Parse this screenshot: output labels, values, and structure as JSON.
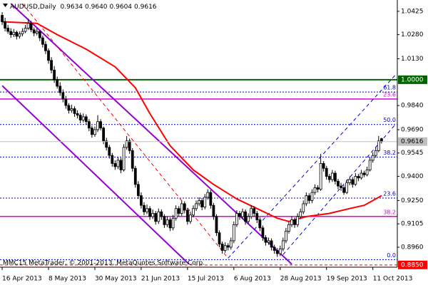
{
  "chart_data": {
    "type": "candlestick",
    "symbol": "AUDUSD,Daily",
    "value_labels": [
      "0.9634",
      "0.9640",
      "0.9604",
      "0.9616"
    ],
    "copyright": "MMC15 MetaTrader, © 2001-2013, MetaQuotes Software Corp.",
    "xlim": [
      -0.75,
      136.45
    ],
    "xticks": [
      {
        "value": 0,
        "label": "16 Apr 2013"
      },
      {
        "value": 16,
        "label": "8 May 2013"
      },
      {
        "value": 32,
        "label": "30 May 2013"
      },
      {
        "value": 48,
        "label": "21 Jun 2013"
      },
      {
        "value": 64,
        "label": "15 Jul 2013"
      },
      {
        "value": 80,
        "label": "6 Aug 2013"
      },
      {
        "value": 96,
        "label": "28 Aug 2013"
      },
      {
        "value": 112,
        "label": "19 Sep 2013"
      },
      {
        "value": 128,
        "label": "11 Oct 2013"
      }
    ],
    "ylim": [
      0.8836,
      1.0473
    ],
    "yticks": [
      {
        "value": 1.0425,
        "label": "1.0425"
      },
      {
        "value": 1.028,
        "label": "1.0280"
      },
      {
        "value": 1.013,
        "label": "1.0130"
      },
      {
        "value": 0.984,
        "label": "0.9840"
      },
      {
        "value": 0.969,
        "label": "0.9690"
      },
      {
        "value": 0.9545,
        "label": "0.9545"
      },
      {
        "value": 0.94,
        "label": "0.9400"
      },
      {
        "value": 0.925,
        "label": "0.9250"
      },
      {
        "value": 0.9105,
        "label": "0.9105"
      },
      {
        "value": 0.896,
        "label": "0.8960"
      }
    ],
    "up_color": "#ffffff",
    "down_color": "#000000",
    "candle_outline": "#000000",
    "current_price_color": "#c0c0c0",
    "ohlc": [
      [
        1.04,
        1.042,
        1.034,
        1.036
      ],
      [
        1.036,
        1.0385,
        1.03,
        1.032
      ],
      [
        1.032,
        1.034,
        1.0285,
        1.03
      ],
      [
        1.03,
        1.032,
        1.026,
        1.028
      ],
      [
        1.028,
        1.0315,
        1.0265,
        1.0295
      ],
      [
        1.0295,
        1.0305,
        1.025,
        1.027
      ],
      [
        1.027,
        1.03,
        1.0255,
        1.0285
      ],
      [
        1.0285,
        1.032,
        1.027,
        1.03
      ],
      [
        1.03,
        1.034,
        1.029,
        1.032
      ],
      [
        1.032,
        1.038,
        1.031,
        1.035
      ],
      [
        1.035,
        1.0365,
        1.0295,
        1.031
      ],
      [
        1.031,
        1.0325,
        1.027,
        1.029
      ],
      [
        1.029,
        1.032,
        1.0275,
        1.03
      ],
      [
        1.03,
        1.031,
        1.024,
        1.026
      ],
      [
        1.026,
        1.0275,
        1.02,
        1.022
      ],
      [
        1.022,
        1.024,
        1.016,
        1.018
      ],
      [
        1.018,
        1.0195,
        1.01,
        1.012
      ],
      [
        1.012,
        1.014,
        1.004,
        1.006
      ],
      [
        1.006,
        1.0085,
        0.998,
        1.0
      ],
      [
        1.0,
        1.002,
        0.9945,
        0.996
      ],
      [
        0.996,
        0.9985,
        0.99,
        0.992
      ],
      [
        0.992,
        0.994,
        0.986,
        0.988
      ],
      [
        0.988,
        0.99,
        0.982,
        0.984
      ],
      [
        0.984,
        0.9855,
        0.979,
        0.981
      ],
      [
        0.981,
        0.9845,
        0.9795,
        0.982
      ],
      [
        0.982,
        0.9835,
        0.977,
        0.979
      ],
      [
        0.979,
        0.981,
        0.976,
        0.978
      ],
      [
        0.978,
        0.9795,
        0.973,
        0.975
      ],
      [
        0.975,
        0.979,
        0.9735,
        0.977
      ],
      [
        0.977,
        0.9785,
        0.972,
        0.974
      ],
      [
        0.974,
        0.9755,
        0.968,
        0.97
      ],
      [
        0.97,
        0.9715,
        0.964,
        0.966
      ],
      [
        0.966,
        0.971,
        0.9645,
        0.969
      ],
      [
        0.969,
        0.978,
        0.9675,
        0.974
      ],
      [
        0.974,
        0.9755,
        0.9685,
        0.97
      ],
      [
        0.97,
        0.971,
        0.96,
        0.962
      ],
      [
        0.962,
        0.964,
        0.956,
        0.958
      ],
      [
        0.958,
        0.9595,
        0.951,
        0.953
      ],
      [
        0.953,
        0.9545,
        0.946,
        0.948
      ],
      [
        0.948,
        0.95,
        0.944,
        0.946
      ],
      [
        0.946,
        0.952,
        0.9445,
        0.95
      ],
      [
        0.95,
        0.9515,
        0.942,
        0.944
      ],
      [
        0.944,
        0.96,
        0.943,
        0.958
      ],
      [
        0.958,
        0.965,
        0.9565,
        0.962
      ],
      [
        0.962,
        0.9635,
        0.954,
        0.956
      ],
      [
        0.956,
        0.9575,
        0.943,
        0.945
      ],
      [
        0.945,
        0.9465,
        0.933,
        0.935
      ],
      [
        0.935,
        0.937,
        0.926,
        0.928
      ],
      [
        0.928,
        0.93,
        0.92,
        0.922
      ],
      [
        0.922,
        0.924,
        0.916,
        0.918
      ],
      [
        0.918,
        0.9225,
        0.9165,
        0.92
      ],
      [
        0.92,
        0.9215,
        0.913,
        0.915
      ],
      [
        0.915,
        0.9195,
        0.9135,
        0.917
      ],
      [
        0.917,
        0.9185,
        0.91,
        0.912
      ],
      [
        0.912,
        0.92,
        0.9105,
        0.918
      ],
      [
        0.918,
        0.9195,
        0.913,
        0.915
      ],
      [
        0.915,
        0.9165,
        0.908,
        0.91
      ],
      [
        0.91,
        0.915,
        0.9085,
        0.913
      ],
      [
        0.913,
        0.9145,
        0.906,
        0.908
      ],
      [
        0.908,
        0.916,
        0.9065,
        0.914
      ],
      [
        0.914,
        0.922,
        0.9125,
        0.92
      ],
      [
        0.92,
        0.9215,
        0.915,
        0.917
      ],
      [
        0.917,
        0.925,
        0.9155,
        0.923
      ],
      [
        0.923,
        0.9245,
        0.917,
        0.919
      ],
      [
        0.919,
        0.9205,
        0.91,
        0.912
      ],
      [
        0.912,
        0.918,
        0.9105,
        0.916
      ],
      [
        0.916,
        0.922,
        0.9145,
        0.92
      ],
      [
        0.92,
        0.925,
        0.9185,
        0.923
      ],
      [
        0.923,
        0.927,
        0.9215,
        0.925
      ],
      [
        0.925,
        0.9265,
        0.919,
        0.921
      ],
      [
        0.921,
        0.929,
        0.9195,
        0.927
      ],
      [
        0.927,
        0.932,
        0.9255,
        0.93
      ],
      [
        0.93,
        0.9315,
        0.92,
        0.922
      ],
      [
        0.922,
        0.9235,
        0.913,
        0.915
      ],
      [
        0.915,
        0.9165,
        0.903,
        0.905
      ],
      [
        0.905,
        0.9065,
        0.896,
        0.898
      ],
      [
        0.898,
        0.8995,
        0.892,
        0.894
      ],
      [
        0.894,
        0.899,
        0.8925,
        0.897
      ],
      [
        0.897,
        0.8985,
        0.894,
        0.896
      ],
      [
        0.896,
        0.902,
        0.8945,
        0.9
      ],
      [
        0.9,
        0.912,
        0.8985,
        0.91
      ],
      [
        0.91,
        0.919,
        0.9085,
        0.917
      ],
      [
        0.917,
        0.9185,
        0.913,
        0.915
      ],
      [
        0.915,
        0.92,
        0.9135,
        0.918
      ],
      [
        0.918,
        0.9195,
        0.91,
        0.912
      ],
      [
        0.912,
        0.917,
        0.9105,
        0.915
      ],
      [
        0.915,
        0.922,
        0.9135,
        0.92
      ],
      [
        0.92,
        0.9215,
        0.915,
        0.917
      ],
      [
        0.917,
        0.9185,
        0.911,
        0.913
      ],
      [
        0.913,
        0.9145,
        0.906,
        0.908
      ],
      [
        0.908,
        0.9095,
        0.9,
        0.902
      ],
      [
        0.902,
        0.9035,
        0.897,
        0.899
      ],
      [
        0.899,
        0.902,
        0.8975,
        0.9
      ],
      [
        0.9,
        0.9015,
        0.894,
        0.896
      ],
      [
        0.896,
        0.8975,
        0.892,
        0.894
      ],
      [
        0.894,
        0.8955,
        0.89,
        0.892
      ],
      [
        0.892,
        0.897,
        0.8905,
        0.895
      ],
      [
        0.895,
        0.902,
        0.8935,
        0.9
      ],
      [
        0.9,
        0.908,
        0.8985,
        0.906
      ],
      [
        0.906,
        0.912,
        0.9045,
        0.91
      ],
      [
        0.91,
        0.915,
        0.9085,
        0.913
      ],
      [
        0.913,
        0.9145,
        0.908,
        0.91
      ],
      [
        0.91,
        0.917,
        0.9085,
        0.915
      ],
      [
        0.915,
        0.92,
        0.9135,
        0.918
      ],
      [
        0.918,
        0.925,
        0.9165,
        0.923
      ],
      [
        0.923,
        0.93,
        0.9215,
        0.928
      ],
      [
        0.928,
        0.9295,
        0.923,
        0.925
      ],
      [
        0.925,
        0.932,
        0.9235,
        0.93
      ],
      [
        0.93,
        0.935,
        0.9285,
        0.933
      ],
      [
        0.933,
        0.9345,
        0.93,
        0.932
      ],
      [
        0.932,
        0.954,
        0.931,
        0.948
      ],
      [
        0.948,
        0.9495,
        0.943,
        0.945
      ],
      [
        0.945,
        0.9465,
        0.938,
        0.94
      ],
      [
        0.94,
        0.9415,
        0.936,
        0.938
      ],
      [
        0.938,
        0.944,
        0.9365,
        0.942
      ],
      [
        0.942,
        0.9435,
        0.935,
        0.937
      ],
      [
        0.937,
        0.9385,
        0.932,
        0.934
      ],
      [
        0.934,
        0.936,
        0.931,
        0.933
      ],
      [
        0.933,
        0.9345,
        0.9285,
        0.93
      ],
      [
        0.93,
        0.938,
        0.929,
        0.936
      ],
      [
        0.936,
        0.94,
        0.9345,
        0.938
      ],
      [
        0.938,
        0.9395,
        0.933,
        0.935
      ],
      [
        0.935,
        0.942,
        0.934,
        0.94
      ],
      [
        0.94,
        0.9415,
        0.937,
        0.939
      ],
      [
        0.939,
        0.944,
        0.938,
        0.942
      ],
      [
        0.942,
        0.9435,
        0.9395,
        0.941
      ],
      [
        0.941,
        0.946,
        0.94,
        0.944
      ],
      [
        0.944,
        0.952,
        0.943,
        0.95
      ],
      [
        0.95,
        0.955,
        0.9485,
        0.953
      ],
      [
        0.953,
        0.958,
        0.9515,
        0.956
      ],
      [
        0.956,
        0.965,
        0.955,
        0.962
      ],
      [
        0.9634,
        0.964,
        0.9604,
        0.9616
      ]
    ],
    "moving_average": {
      "color": "#ff0000",
      "x": [
        0,
        12,
        19,
        29,
        39,
        46,
        51,
        58,
        66,
        73,
        81,
        88,
        95,
        99,
        105,
        113,
        120,
        125,
        131
      ],
      "values": [
        1.036,
        1.035,
        1.028,
        1.019,
        1.008,
        0.995,
        0.979,
        0.959,
        0.944,
        0.935,
        0.926,
        0.92,
        0.914,
        0.912,
        0.915,
        0.917,
        0.92,
        0.922,
        0.928
      ]
    },
    "trendlines": [
      {
        "color": "#9400d3",
        "width": 2,
        "dash": false,
        "points": [
          [
            3,
            1.0473
          ],
          [
            100,
            0.8855
          ]
        ]
      },
      {
        "color": "#9400d3",
        "width": 2,
        "dash": false,
        "points": [
          [
            0,
            0.9963
          ],
          [
            64.5,
            0.8855
          ]
        ]
      },
      {
        "color": "#ff0000",
        "width": 1,
        "dash": true,
        "points": [
          [
            7,
            1.0473
          ],
          [
            78,
            0.8892
          ]
        ]
      },
      {
        "color": "#0000cd",
        "width": 1,
        "dash": true,
        "points": [
          [
            78,
            0.8892
          ],
          [
            136,
            1.0034
          ]
        ]
      },
      {
        "color": "#0000cd",
        "width": 1,
        "dash": true,
        "points": [
          [
            97,
            0.8914
          ],
          [
            136,
            0.9727
          ]
        ]
      }
    ],
    "price_lines": [
      {
        "value": 1.0,
        "label": "1.0000",
        "color": "#006400",
        "dash": false
      },
      {
        "value": 0.885,
        "label": "0.8850",
        "color": "#ff0000",
        "dash": true
      }
    ],
    "fib_levels": [
      {
        "value": 0.9924,
        "label": "61.8",
        "color": "#0000cd",
        "dash": true
      },
      {
        "value": 0.988,
        "label": "23.6",
        "color": "#dd00dd",
        "dash": false
      },
      {
        "value": 0.9722,
        "label": "50.0",
        "color": "#0000cd",
        "dash": true
      },
      {
        "value": 0.952,
        "label": "38.2",
        "color": "#0000cd",
        "dash": true
      },
      {
        "value": 0.9265,
        "label": "23.6",
        "color": "#0000cd",
        "dash": true
      },
      {
        "value": 0.9151,
        "label": "38.2",
        "color": "#dd00dd",
        "dash": false
      },
      {
        "value": 0.8883,
        "label": "0.0",
        "color": "#0000cd",
        "dash": true
      }
    ]
  }
}
